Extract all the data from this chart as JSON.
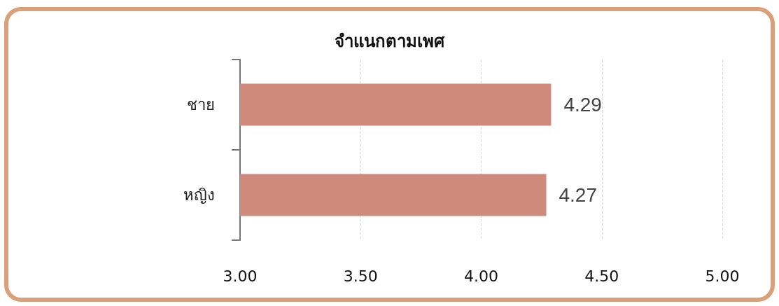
{
  "chart_data": {
    "type": "bar",
    "orientation": "horizontal",
    "title": "จำแนกตามเพศ",
    "categories": [
      "ชาย",
      "หญิง"
    ],
    "values": [
      4.29,
      4.27
    ],
    "color": "#cf8a7c",
    "xlim": [
      3,
      5
    ],
    "xticks": [
      {
        "value": 3,
        "label": "3.00"
      },
      {
        "value": 3.5,
        "label": "3.50"
      },
      {
        "value": 4,
        "label": "4.00"
      },
      {
        "value": 4.5,
        "label": "4.50"
      },
      {
        "value": 5,
        "label": "5.00"
      }
    ],
    "grid": "x",
    "data_labels": true
  }
}
